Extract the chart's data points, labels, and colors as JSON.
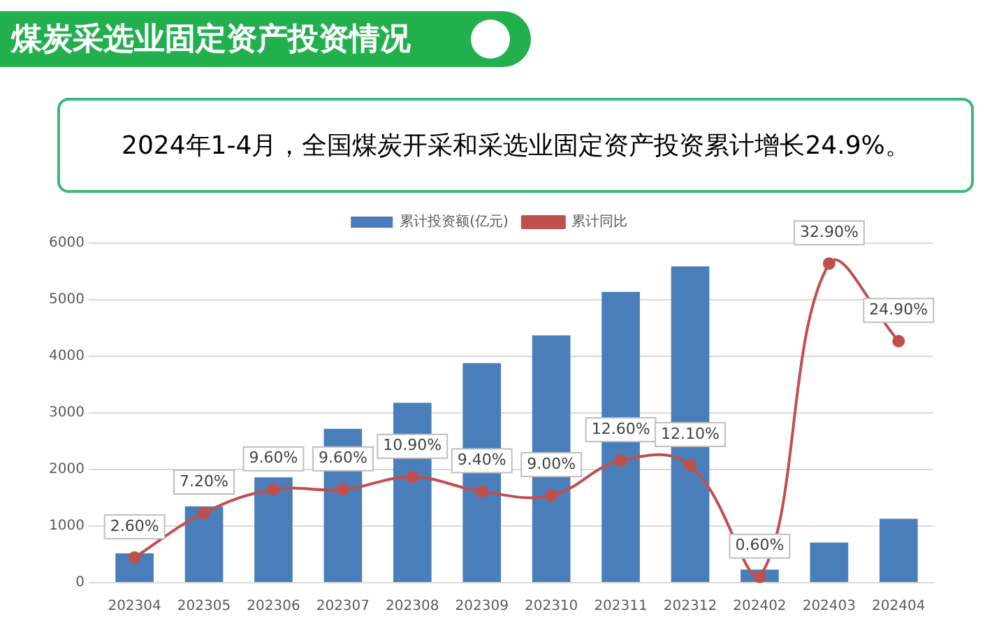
{
  "chart_data": {
    "type": "bar",
    "title": "煤炭采选业固定资产投资情况",
    "subtitle": "2024年1-4月，全国煤炭开采和采选业固定资产投资累计增长24.9%。",
    "categories": [
      "202304",
      "202305",
      "202306",
      "202307",
      "202308",
      "202309",
      "202310",
      "202311",
      "202312",
      "202402",
      "202403",
      "202404"
    ],
    "series": [
      {
        "name": "累计投资额(亿元)",
        "color": "#4a7ebb",
        "values": [
          520,
          1350,
          1860,
          2720,
          3180,
          3880,
          4370,
          5140,
          5590,
          230,
          710,
          1130
        ]
      },
      {
        "name": "累计同比",
        "type": "line",
        "axis": "y2",
        "color": "#c0504d",
        "values": [
          2.6,
          7.2,
          9.6,
          9.6,
          10.9,
          9.4,
          9.0,
          12.6,
          12.1,
          0.6,
          32.9,
          24.9
        ],
        "value_labels": [
          "2.60%",
          "7.20%",
          "9.60%",
          "9.60%",
          "10.90%",
          "9.40%",
          "9.00%",
          "12.60%",
          "12.10%",
          "0.60%",
          "32.90%",
          "24.90%"
        ]
      }
    ],
    "ylim": [
      0,
      6000
    ],
    "yticks": [
      0,
      1000,
      2000,
      3000,
      4000,
      5000,
      6000
    ],
    "grid": "y",
    "legend": "top",
    "marker": "circle"
  }
}
